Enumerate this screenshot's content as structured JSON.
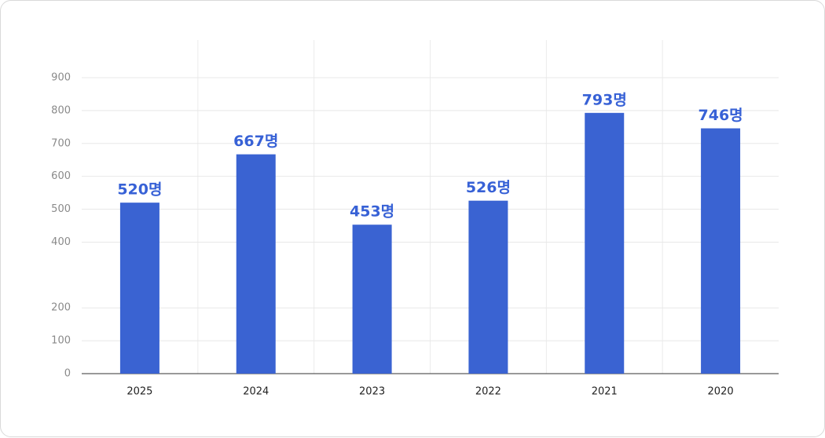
{
  "chart_data": {
    "type": "bar",
    "categories": [
      "2025",
      "2024",
      "2023",
      "2022",
      "2021",
      "2020"
    ],
    "values": [
      520,
      667,
      453,
      526,
      793,
      746
    ],
    "value_labels": [
      "520명",
      "667명",
      "453명",
      "526명",
      "793명",
      "746명"
    ],
    "color": "#3a63d2",
    "ylim": [
      0,
      900
    ],
    "yticks": [
      0,
      100,
      200,
      400,
      500,
      600,
      700,
      800,
      900
    ],
    "grid": true
  }
}
